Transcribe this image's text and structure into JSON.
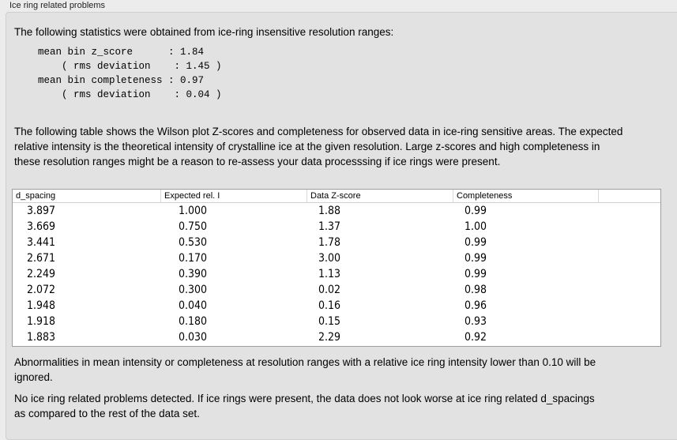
{
  "group_title": "Ice ring related problems",
  "intro": "The following statistics were obtained from ice-ring insensitive resolution ranges:",
  "stats_block": "mean bin z_score      : 1.84\n    ( rms deviation    : 1.45 )\nmean bin completeness : 0.97\n    ( rms deviation    : 0.04 )",
  "table_intro": "The following table shows the Wilson plot Z-scores and completeness for observed data in ice-ring sensitive areas. The expected relative intensity is the theoretical intensity of crystalline ice at the given resolution. Large z-scores and high completeness in these resolution ranges might be a reason to re-assess your data processsing if ice rings were present.",
  "table": {
    "columns": [
      "d_spacing",
      "Expected rel. I",
      "Data Z-score",
      "Completeness"
    ],
    "rows": [
      [
        "3.897",
        "1.000",
        "1.88",
        "0.99"
      ],
      [
        "3.669",
        "0.750",
        "1.37",
        "1.00"
      ],
      [
        "3.441",
        "0.530",
        "1.78",
        "0.99"
      ],
      [
        "2.671",
        "0.170",
        "3.00",
        "0.99"
      ],
      [
        "2.249",
        "0.390",
        "1.13",
        "0.99"
      ],
      [
        "2.072",
        "0.300",
        "0.02",
        "0.98"
      ],
      [
        "1.948",
        "0.040",
        "0.16",
        "0.96"
      ],
      [
        "1.918",
        "0.180",
        "0.15",
        "0.93"
      ],
      [
        "1.883",
        "0.030",
        "2.29",
        "0.92"
      ]
    ]
  },
  "note": "Abnormalities in mean intensity or completeness at resolution ranges with a relative ice ring intensity lower than 0.10 will be ignored.",
  "conclusion": "No ice ring related problems detected. If ice rings were present, the data does not look worse at ice ring related d_spacings as compared to the rest of the data set."
}
